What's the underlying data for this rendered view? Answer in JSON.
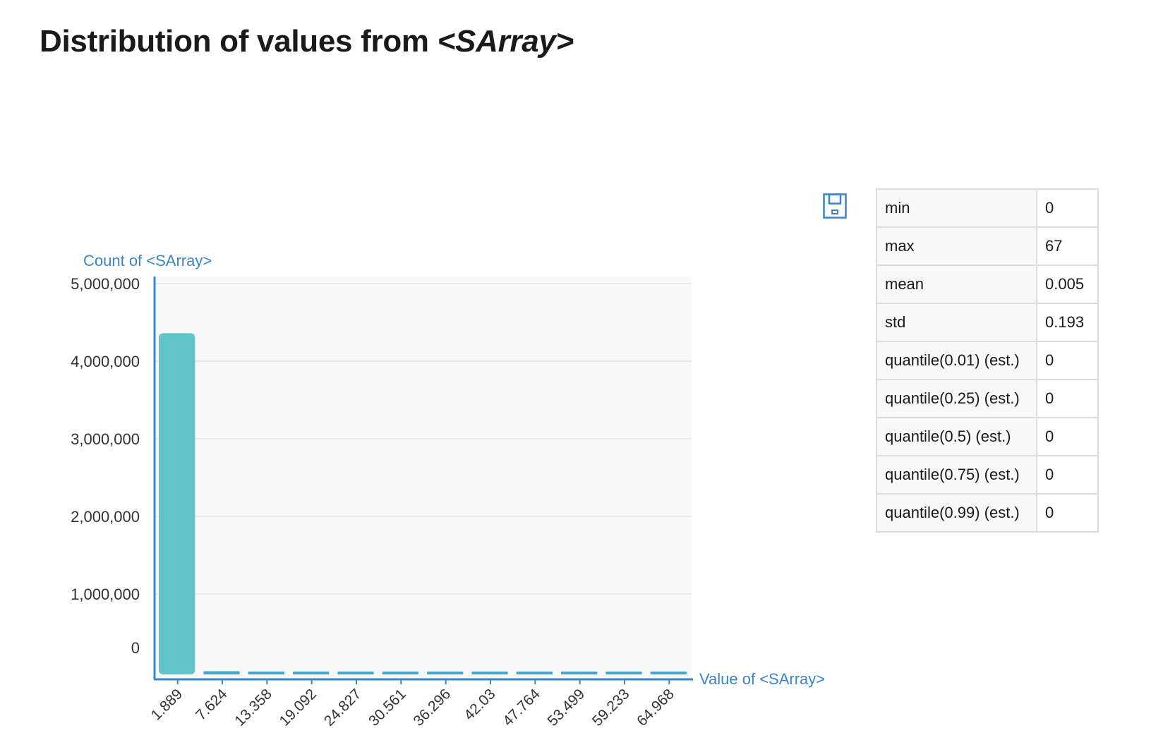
{
  "header": {
    "title_prefix": "Distribution of values from ",
    "title_em": "<SArray>"
  },
  "toolbar": {
    "save_icon": "save-icon",
    "save_color": "#3a84c9"
  },
  "stats": [
    {
      "key": "min",
      "value": "0"
    },
    {
      "key": "max",
      "value": "67"
    },
    {
      "key": "mean",
      "value": "0.005"
    },
    {
      "key": "std",
      "value": "0.193"
    },
    {
      "key": "quantile(0.01) (est.)",
      "value": "0"
    },
    {
      "key": "quantile(0.25) (est.)",
      "value": "0"
    },
    {
      "key": "quantile(0.5) (est.)",
      "value": "0"
    },
    {
      "key": "quantile(0.75) (est.)",
      "value": "0"
    },
    {
      "key": "quantile(0.99) (est.)",
      "value": "0"
    }
  ],
  "chart_data": {
    "type": "bar",
    "ylabel": "Count of <SArray>",
    "xlabel": "Value of <SArray>",
    "categories": [
      "1.889",
      "7.624",
      "13.358",
      "19.092",
      "24.827",
      "30.561",
      "36.296",
      "42.03",
      "47.764",
      "53.499",
      "59.233",
      "64.968"
    ],
    "values": [
      4360000,
      5000,
      500,
      100,
      50,
      20,
      10,
      5,
      5,
      2,
      2,
      2
    ],
    "ylim": [
      0,
      5000000
    ],
    "yticks": [
      0,
      1000000,
      2000000,
      3000000,
      4000000,
      5000000
    ],
    "ytick_labels": [
      "0",
      "1,000,000",
      "2,000,000",
      "3,000,000",
      "4,000,000",
      "5,000,000"
    ],
    "grid": true,
    "colors": {
      "bar": "#62c4c8",
      "bar_minor": "#4aa3c8",
      "axis": "#3a84c9",
      "label": "#3a84c9",
      "plot_bg": "#f8f8f8",
      "grid": "#e6e6e6"
    }
  }
}
